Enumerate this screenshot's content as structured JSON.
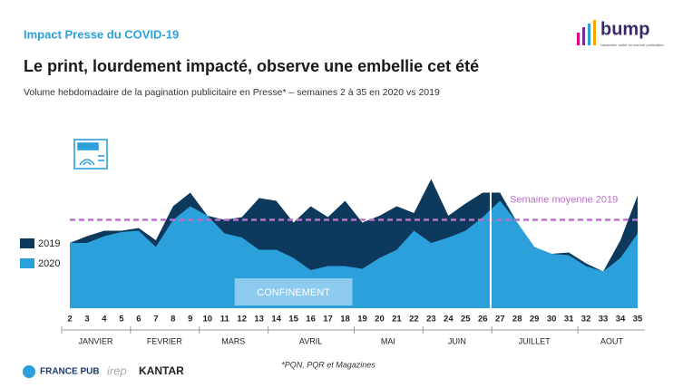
{
  "chart_data": {
    "type": "area",
    "kicker": "Impact Presse du COVID-19",
    "title": "Le print, lourdement impacté, observe une embellie cet été",
    "subtitle": "Volume hebdomadaire de la pagination publicitaire en Presse* – semaines 2 à 35 en 2020 vs 2019",
    "x": [
      2,
      3,
      4,
      5,
      6,
      7,
      8,
      9,
      10,
      11,
      12,
      13,
      14,
      15,
      16,
      17,
      18,
      19,
      20,
      21,
      22,
      23,
      24,
      25,
      26,
      27,
      28,
      29,
      30,
      31,
      32,
      33,
      34,
      35
    ],
    "xlim": [
      2,
      35
    ],
    "ylim": [
      0,
      100
    ],
    "series": [
      {
        "name": "2019",
        "color": "#0d3a5c",
        "values": [
          48,
          53,
          57,
          57,
          59,
          50,
          75,
          85,
          68,
          65,
          67,
          81,
          79,
          63,
          75,
          67,
          79,
          63,
          68,
          75,
          70,
          95,
          68,
          77,
          85,
          85,
          63,
          45,
          40,
          41,
          33,
          27,
          50,
          83
        ]
      },
      {
        "name": "2020",
        "color": "#2ba0da",
        "values": [
          48,
          48,
          53,
          56,
          57,
          45,
          65,
          75,
          68,
          55,
          52,
          43,
          43,
          37,
          28,
          31,
          31,
          29,
          37,
          43,
          57,
          48,
          52,
          57,
          67,
          79,
          63,
          45,
          40,
          39,
          31,
          27,
          37,
          55
        ]
      }
    ],
    "average": {
      "label": "Semaine moyenne 2019",
      "value": 65,
      "color": "#b873c8"
    },
    "confinement": {
      "label": "CONFINEMENT",
      "from": 12,
      "to": 18
    },
    "months": [
      {
        "label": "JANVIER",
        "from": 2,
        "to": 5
      },
      {
        "label": "FEVRIER",
        "from": 6,
        "to": 9
      },
      {
        "label": "MARS",
        "from": 10,
        "to": 13
      },
      {
        "label": "AVRIL",
        "from": 14,
        "to": 18
      },
      {
        "label": "MAI",
        "from": 19,
        "to": 22
      },
      {
        "label": "JUIN",
        "from": 23,
        "to": 26
      },
      {
        "label": "JUILLET",
        "from": 27,
        "to": 31
      },
      {
        "label": "AOUT",
        "from": 32,
        "to": 35
      }
    ],
    "footnote": "*PQN, PQR et Magazines",
    "logos": {
      "bump": "bump",
      "bump_tagline": "baromètre unifié du marché publicitaire",
      "francepub": "FRANCE PUB",
      "irep": "irep",
      "kantar": "KANTAR"
    }
  }
}
